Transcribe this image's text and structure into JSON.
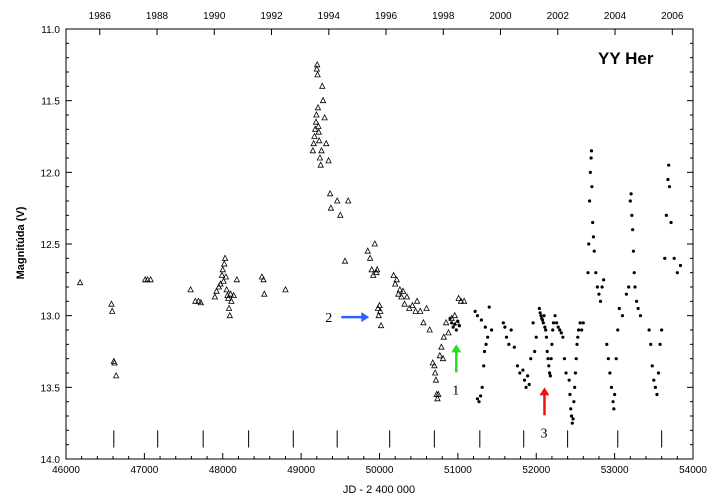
{
  "chart_data": {
    "type": "scatter",
    "title": "YY Her",
    "xlabel": "JD - 2 400 000",
    "ylabel": "Magnitúda (V)",
    "xlim": [
      46000,
      54000
    ],
    "ylim": [
      11.0,
      14.0
    ],
    "y_inverted": true,
    "x_ticks": [
      "46000",
      "47000",
      "48000",
      "49000",
      "50000",
      "51000",
      "52000",
      "53000",
      "54000"
    ],
    "y_ticks": [
      "11.0",
      "11.5",
      "12.0",
      "12.5",
      "13.0",
      "13.5",
      "14.0"
    ],
    "top_axis_ticks": [
      {
        "jd": 46431,
        "label": "1986"
      },
      {
        "jd": 47161,
        "label": "1988"
      },
      {
        "jd": 47892,
        "label": "1990"
      },
      {
        "jd": 48622,
        "label": "1992"
      },
      {
        "jd": 49353,
        "label": "1994"
      },
      {
        "jd": 50083,
        "label": "1996"
      },
      {
        "jd": 50814,
        "label": "1998"
      },
      {
        "jd": 51544,
        "label": "2000"
      },
      {
        "jd": 52275,
        "label": "2002"
      },
      {
        "jd": 53005,
        "label": "2004"
      },
      {
        "jd": 53736,
        "label": "2006"
      }
    ],
    "bottom_markers_jd": [
      46610,
      47170,
      47750,
      48330,
      48900,
      49460,
      50130,
      50700,
      51280,
      51840,
      52400,
      53040,
      53600
    ],
    "series": [
      {
        "marker": "triangle",
        "points": [
          [
            46180,
            12.77
          ],
          [
            46580,
            12.92
          ],
          [
            46590,
            12.97
          ],
          [
            46610,
            13.32
          ],
          [
            46620,
            13.33
          ],
          [
            46640,
            13.42
          ],
          [
            47010,
            12.75
          ],
          [
            47040,
            12.75
          ],
          [
            47080,
            12.75
          ],
          [
            47590,
            12.82
          ],
          [
            47650,
            12.9
          ],
          [
            47690,
            12.9
          ],
          [
            47720,
            12.91
          ],
          [
            47900,
            12.87
          ],
          [
            47920,
            12.83
          ],
          [
            47950,
            12.8
          ],
          [
            47970,
            12.78
          ],
          [
            47990,
            12.72
          ],
          [
            48000,
            12.68
          ],
          [
            48010,
            12.76
          ],
          [
            48020,
            12.64
          ],
          [
            48030,
            12.6
          ],
          [
            48040,
            12.73
          ],
          [
            48050,
            12.82
          ],
          [
            48060,
            12.86
          ],
          [
            48070,
            12.88
          ],
          [
            48080,
            12.95
          ],
          [
            48090,
            13.0
          ],
          [
            48100,
            12.85
          ],
          [
            48110,
            12.9
          ],
          [
            48140,
            12.86
          ],
          [
            48180,
            12.75
          ],
          [
            48500,
            12.73
          ],
          [
            48520,
            12.75
          ],
          [
            48530,
            12.85
          ],
          [
            48800,
            12.82
          ],
          [
            49150,
            11.85
          ],
          [
            49160,
            11.8
          ],
          [
            49170,
            11.75
          ],
          [
            49180,
            11.7
          ],
          [
            49190,
            11.65
          ],
          [
            49195,
            11.6
          ],
          [
            49200,
            11.28
          ],
          [
            49205,
            11.25
          ],
          [
            49210,
            11.32
          ],
          [
            49215,
            11.55
          ],
          [
            49220,
            11.68
          ],
          [
            49225,
            11.72
          ],
          [
            49230,
            11.78
          ],
          [
            49240,
            11.9
          ],
          [
            49250,
            11.95
          ],
          [
            49260,
            11.85
          ],
          [
            49270,
            11.4
          ],
          [
            49280,
            11.5
          ],
          [
            49300,
            11.62
          ],
          [
            49320,
            11.8
          ],
          [
            49350,
            11.92
          ],
          [
            49370,
            12.15
          ],
          [
            49380,
            12.25
          ],
          [
            49460,
            12.2
          ],
          [
            49500,
            12.3
          ],
          [
            49560,
            12.62
          ],
          [
            49600,
            12.2
          ],
          [
            49850,
            12.55
          ],
          [
            49880,
            12.6
          ],
          [
            49900,
            12.68
          ],
          [
            49920,
            12.72
          ],
          [
            49940,
            12.5
          ],
          [
            49960,
            12.7
          ],
          [
            49970,
            12.68
          ],
          [
            49980,
            12.95
          ],
          [
            49990,
            13.0
          ],
          [
            50000,
            12.93
          ],
          [
            50010,
            12.97
          ],
          [
            50020,
            13.07
          ],
          [
            50180,
            12.72
          ],
          [
            50200,
            12.78
          ],
          [
            50220,
            12.75
          ],
          [
            50240,
            12.85
          ],
          [
            50260,
            12.82
          ],
          [
            50280,
            12.87
          ],
          [
            50300,
            12.83
          ],
          [
            50320,
            12.92
          ],
          [
            50350,
            12.87
          ],
          [
            50380,
            12.95
          ],
          [
            50420,
            12.93
          ],
          [
            50460,
            12.97
          ],
          [
            50480,
            12.9
          ],
          [
            50520,
            12.97
          ],
          [
            50560,
            13.05
          ],
          [
            50600,
            12.95
          ],
          [
            50640,
            13.1
          ],
          [
            50680,
            13.33
          ],
          [
            50700,
            13.35
          ],
          [
            50710,
            13.4
          ],
          [
            50720,
            13.45
          ],
          [
            50730,
            13.55
          ],
          [
            50740,
            13.58
          ],
          [
            50750,
            13.55
          ],
          [
            50770,
            13.28
          ],
          [
            50790,
            13.22
          ],
          [
            50810,
            13.3
          ],
          [
            50820,
            13.15
          ],
          [
            50850,
            13.05
          ],
          [
            50880,
            13.12
          ],
          [
            50920,
            13.02
          ],
          [
            50960,
            13.0
          ],
          [
            50990,
            13.05
          ],
          [
            51010,
            12.88
          ],
          [
            51040,
            12.9
          ],
          [
            51080,
            12.9
          ]
        ]
      },
      {
        "marker": "dot",
        "points": [
          [
            50900,
            13.02
          ],
          [
            50920,
            13.05
          ],
          [
            50940,
            13.08
          ],
          [
            50960,
            13.06
          ],
          [
            50980,
            13.1
          ],
          [
            51000,
            13.04
          ],
          [
            51020,
            13.07
          ],
          [
            51220,
            12.97
          ],
          [
            51250,
            13.0
          ],
          [
            51300,
            13.03
          ],
          [
            51350,
            13.08
          ],
          [
            51400,
            12.94
          ],
          [
            51430,
            13.1
          ],
          [
            51250,
            13.58
          ],
          [
            51270,
            13.6
          ],
          [
            51290,
            13.56
          ],
          [
            51310,
            13.5
          ],
          [
            51330,
            13.35
          ],
          [
            51340,
            13.25
          ],
          [
            51360,
            13.2
          ],
          [
            51380,
            13.15
          ],
          [
            51580,
            13.05
          ],
          [
            51600,
            13.08
          ],
          [
            51620,
            13.15
          ],
          [
            51650,
            13.2
          ],
          [
            51680,
            13.1
          ],
          [
            51720,
            13.22
          ],
          [
            51760,
            13.35
          ],
          [
            51790,
            13.4
          ],
          [
            51830,
            13.38
          ],
          [
            51850,
            13.45
          ],
          [
            51870,
            13.5
          ],
          [
            51890,
            13.42
          ],
          [
            51910,
            13.48
          ],
          [
            51930,
            13.3
          ],
          [
            51960,
            13.05
          ],
          [
            51980,
            13.25
          ],
          [
            52000,
            13.15
          ],
          [
            52040,
            12.95
          ],
          [
            52050,
            12.98
          ],
          [
            52060,
            13.0
          ],
          [
            52070,
            13.02
          ],
          [
            52080,
            13.03
          ],
          [
            52090,
            13.05
          ],
          [
            52100,
            13.0
          ],
          [
            52110,
            13.08
          ],
          [
            52120,
            13.1
          ],
          [
            52130,
            13.15
          ],
          [
            52140,
            13.25
          ],
          [
            52150,
            13.3
          ],
          [
            52160,
            13.35
          ],
          [
            52170,
            13.4
          ],
          [
            52180,
            13.42
          ],
          [
            52190,
            13.3
          ],
          [
            52200,
            13.2
          ],
          [
            52210,
            13.1
          ],
          [
            52220,
            13.05
          ],
          [
            52240,
            13.0
          ],
          [
            52260,
            13.05
          ],
          [
            52280,
            13.08
          ],
          [
            52300,
            13.1
          ],
          [
            52320,
            13.12
          ],
          [
            52340,
            13.15
          ],
          [
            52360,
            13.3
          ],
          [
            52380,
            13.4
          ],
          [
            52420,
            13.45
          ],
          [
            52430,
            13.55
          ],
          [
            52440,
            13.65
          ],
          [
            52450,
            13.7
          ],
          [
            52460,
            13.75
          ],
          [
            52470,
            13.72
          ],
          [
            52480,
            13.6
          ],
          [
            52490,
            13.5
          ],
          [
            52500,
            13.4
          ],
          [
            52510,
            13.3
          ],
          [
            52520,
            13.2
          ],
          [
            52530,
            13.15
          ],
          [
            52540,
            13.1
          ],
          [
            52560,
            13.05
          ],
          [
            52580,
            13.1
          ],
          [
            52600,
            13.05
          ],
          [
            52660,
            12.7
          ],
          [
            52670,
            12.5
          ],
          [
            52680,
            12.2
          ],
          [
            52690,
            12.0
          ],
          [
            52700,
            11.9
          ],
          [
            52705,
            11.85
          ],
          [
            52710,
            12.1
          ],
          [
            52720,
            12.35
          ],
          [
            52730,
            12.45
          ],
          [
            52740,
            12.55
          ],
          [
            52760,
            12.7
          ],
          [
            52780,
            12.8
          ],
          [
            52800,
            12.85
          ],
          [
            52820,
            12.9
          ],
          [
            52840,
            12.8
          ],
          [
            52860,
            12.75
          ],
          [
            52900,
            13.2
          ],
          [
            52920,
            13.3
          ],
          [
            52940,
            13.4
          ],
          [
            52960,
            13.5
          ],
          [
            52980,
            13.6
          ],
          [
            52990,
            13.65
          ],
          [
            53000,
            13.55
          ],
          [
            53020,
            13.3
          ],
          [
            53040,
            13.1
          ],
          [
            53060,
            12.95
          ],
          [
            53100,
            13.0
          ],
          [
            53150,
            12.85
          ],
          [
            53180,
            12.8
          ],
          [
            53200,
            12.2
          ],
          [
            53210,
            12.15
          ],
          [
            53220,
            12.3
          ],
          [
            53230,
            12.4
          ],
          [
            53240,
            12.55
          ],
          [
            53250,
            12.7
          ],
          [
            53260,
            12.8
          ],
          [
            53280,
            12.9
          ],
          [
            53300,
            12.95
          ],
          [
            53330,
            13.0
          ],
          [
            53440,
            13.1
          ],
          [
            53460,
            13.2
          ],
          [
            53480,
            13.35
          ],
          [
            53500,
            13.45
          ],
          [
            53520,
            13.5
          ],
          [
            53540,
            13.55
          ],
          [
            53560,
            13.4
          ],
          [
            53580,
            13.2
          ],
          [
            53600,
            13.1
          ],
          [
            53640,
            12.6
          ],
          [
            53660,
            12.3
          ],
          [
            53680,
            12.05
          ],
          [
            53690,
            11.95
          ],
          [
            53700,
            12.1
          ],
          [
            53720,
            12.35
          ],
          [
            53760,
            12.6
          ],
          [
            53800,
            12.7
          ],
          [
            53840,
            12.65
          ]
        ]
      }
    ],
    "annotations": [
      {
        "text": "2",
        "arrow_color": "#2b62ff",
        "direction": "right",
        "jd": 49870,
        "mag": 13.01
      },
      {
        "text": "1",
        "arrow_color": "#22dd22",
        "direction": "up",
        "jd": 50980,
        "mag": 13.2
      },
      {
        "text": "3",
        "arrow_color": "#ee1111",
        "direction": "up",
        "jd": 52105,
        "mag": 13.5
      }
    ]
  }
}
